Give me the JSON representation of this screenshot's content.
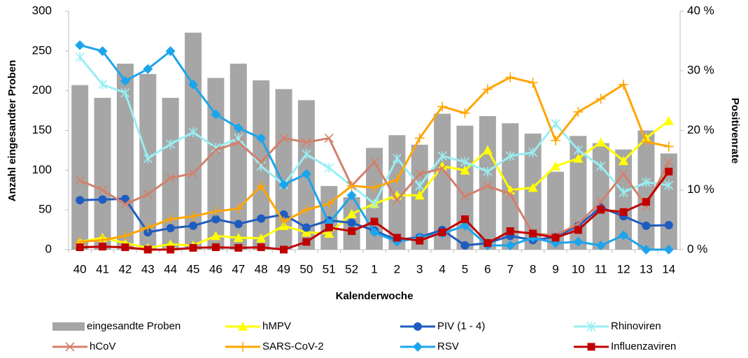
{
  "chart_data": {
    "type": "bar-line",
    "y_label": "Anzahl eingesandter Proben",
    "y2_label": "Positivenrate",
    "x_label": "Kalenderwoche",
    "categories": [
      "40",
      "41",
      "42",
      "43",
      "44",
      "45",
      "46",
      "47",
      "48",
      "49",
      "50",
      "51",
      "52",
      "1",
      "2",
      "3",
      "4",
      "5",
      "6",
      "7",
      "8",
      "9",
      "10",
      "11",
      "12",
      "13",
      "14"
    ],
    "ylim": [
      0,
      300
    ],
    "yticks": [
      0,
      50,
      100,
      150,
      200,
      250,
      300
    ],
    "y2lim": [
      0,
      40
    ],
    "y2ticks": [
      {
        "value": 0,
        "label": "0 %"
      },
      {
        "value": 10,
        "label": "10 %"
      },
      {
        "value": 20,
        "label": "20 %"
      },
      {
        "value": 30,
        "label": "30 %"
      },
      {
        "value": 40,
        "label": "40 %"
      }
    ],
    "legend": "bottom",
    "series": [
      {
        "name": "eingesandte Proben",
        "kind": "bar",
        "color": "#a6a6a6",
        "values": [
          207,
          191,
          234,
          221,
          191,
          273,
          216,
          234,
          213,
          202,
          188,
          80,
          66,
          128,
          144,
          132,
          171,
          156,
          168,
          159,
          146,
          98,
          143,
          134,
          126,
          150,
          121
        ]
      },
      {
        "name": "hMPV",
        "kind": "line",
        "axis": "y2",
        "marker": "triangle",
        "color": "#ffff00",
        "values": [
          1.3,
          2.0,
          1.1,
          0.3,
          0.9,
          0.7,
          2.3,
          2.0,
          1.9,
          4.0,
          2.9,
          2.7,
          6.0,
          7.7,
          9.1,
          9.1,
          14.0,
          13.3,
          16.7,
          10.0,
          10.4,
          14.0,
          15.3,
          18.0,
          14.9,
          18.7,
          21.6
        ]
      },
      {
        "name": "PIV (1 - 4)",
        "kind": "line",
        "axis": "y2",
        "marker": "circle",
        "color": "#1f5cc0",
        "values": [
          8.3,
          8.4,
          8.5,
          2.9,
          3.6,
          4.0,
          5.1,
          4.3,
          5.2,
          5.9,
          3.7,
          4.9,
          4.5,
          3.2,
          1.6,
          2.1,
          3.3,
          0.7,
          1.1,
          2.3,
          1.6,
          2.1,
          4.0,
          7.1,
          5.6,
          4.0,
          4.1
        ]
      },
      {
        "name": "Rhinoviren",
        "kind": "line",
        "axis": "y2",
        "marker": "asterisk",
        "color": "#99eef2",
        "values": [
          32.3,
          27.7,
          26.3,
          15.3,
          17.7,
          19.7,
          17.1,
          18.7,
          14.0,
          10.9,
          16.0,
          13.7,
          10.7,
          7.7,
          15.3,
          10.7,
          15.7,
          14.7,
          13.1,
          15.7,
          16.3,
          21.1,
          16.7,
          14.0,
          9.6,
          11.3,
          10.8
        ]
      },
      {
        "name": "hCoV",
        "kind": "line",
        "axis": "y2",
        "marker": "x",
        "color": "#d2816c",
        "values": [
          11.6,
          10.0,
          7.6,
          9.3,
          12.0,
          12.8,
          16.7,
          18.0,
          14.7,
          18.7,
          18.0,
          18.7,
          10.7,
          14.7,
          8.3,
          12.7,
          13.6,
          8.9,
          10.7,
          9.3,
          2.7,
          2.4,
          4.3,
          8.0,
          12.7,
          7.3,
          14.7
        ]
      },
      {
        "name": "SARS-CoV-2",
        "kind": "line",
        "axis": "y2",
        "marker": "plus",
        "color": "#ffa500",
        "values": [
          1.3,
          1.6,
          2.3,
          3.7,
          5.1,
          5.6,
          6.4,
          6.9,
          10.7,
          4.7,
          6.7,
          7.7,
          10.7,
          10.4,
          11.7,
          18.7,
          24.0,
          22.9,
          26.9,
          28.9,
          28.0,
          18.3,
          23.1,
          25.3,
          27.7,
          18.1,
          17.3
        ]
      },
      {
        "name": "RSV",
        "kind": "line",
        "axis": "y2",
        "marker": "diamond",
        "color": "#1ca5ec",
        "values": [
          34.3,
          33.3,
          28.3,
          30.3,
          33.3,
          27.7,
          22.7,
          20.4,
          18.7,
          10.9,
          12.7,
          4.4,
          9.1,
          2.9,
          1.3,
          2.0,
          2.7,
          4.0,
          0.7,
          0.7,
          2.0,
          1.1,
          1.3,
          0.7,
          2.4,
          0,
          0
        ]
      },
      {
        "name": "Influenzaviren",
        "kind": "line",
        "axis": "y2",
        "marker": "square",
        "color": "#c00000",
        "values": [
          0.4,
          0.5,
          0.4,
          0,
          0,
          0.3,
          0.4,
          0.3,
          0.4,
          0,
          1.3,
          3.7,
          3.1,
          4.7,
          2.0,
          1.5,
          2.9,
          5.1,
          1.1,
          3.1,
          2.7,
          2.0,
          3.3,
          6.7,
          6.3,
          8.0,
          13.1
        ]
      }
    ]
  }
}
